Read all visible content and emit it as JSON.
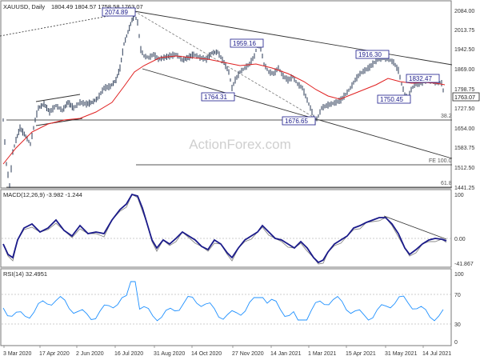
{
  "header": {
    "symbol": "XAUUSD, Daily",
    "ohlc": "1804.49 1804.57 1758.58 1763.07"
  },
  "watermark": "ActionForex.com",
  "price_axis": [
    "2084.00",
    "2013.75",
    "1942.50",
    "1869.00",
    "1798.75",
    "1727.50",
    "1654.00",
    "1583.75",
    "1512.50",
    "1441.25"
  ],
  "last_price": "1763.07",
  "macd": {
    "header": "MACD(12,26,9) -3.982 -1.244",
    "axis": [
      "100",
      "0.00",
      "-41.867"
    ]
  },
  "rsi": {
    "header": "RSI(14) 32.4951",
    "axis": [
      "100",
      "70",
      "30",
      "0"
    ]
  },
  "dates": [
    "3 Mar 2020",
    "17 Apr 2020",
    "2 Jun 2020",
    "16 Jul 2020",
    "31 Aug 2020",
    "14 Oct 2020",
    "27 Nov 2020",
    "14 Jan 2021",
    "1 Mar 2021",
    "15 Apr 2021",
    "31 May 2021",
    "14 Jul 2021"
  ],
  "annotations": [
    "2074.89",
    "1959.16",
    "1764.31",
    "1676.65",
    "1916.30",
    "1832.47",
    "1750.45"
  ],
  "fibo_labels": [
    "38.2",
    "FE 100.0",
    "61.8"
  ],
  "chart_data": {
    "type": "line",
    "title": "XAUUSD, Daily",
    "x": [
      "3 Mar 2020",
      "17 Apr 2020",
      "2 Jun 2020",
      "16 Jul 2020",
      "31 Aug 2020",
      "14 Oct 2020",
      "27 Nov 2020",
      "14 Jan 2021",
      "1 Mar 2021",
      "15 Apr 2021",
      "31 May 2021",
      "14 Jul 2021"
    ],
    "series": [
      {
        "values": [
          1640,
          1700,
          1730,
          1890,
          1950,
          1900,
          1810,
          1840,
          1720,
          1780,
          1900,
          1800
        ]
      }
    ],
    "ylim": [
      1441.25,
      2084.0
    ],
    "grid": false,
    "levels": {
      "fibo_38_2": 1680,
      "fe_100": 1540,
      "fibo_61_8": 1441.25
    }
  }
}
